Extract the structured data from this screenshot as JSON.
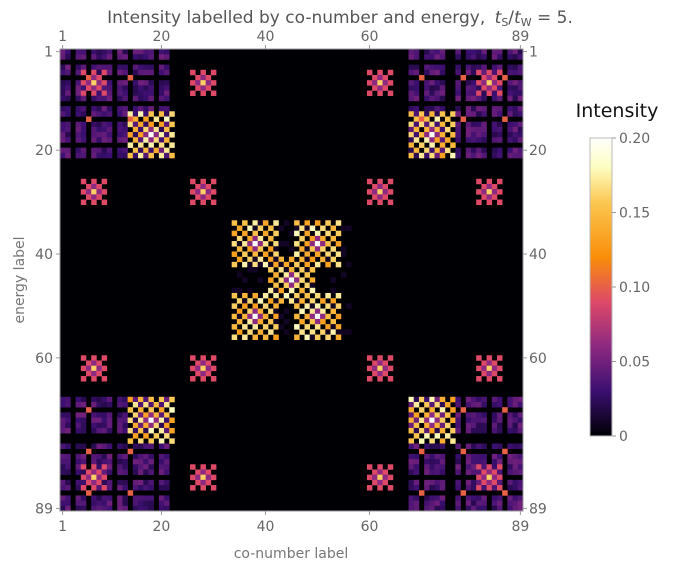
{
  "chart_data": {
    "type": "heatmap",
    "title_main": "Intensity labelled by co-number and energy,",
    "title_ratio": "t",
    "title_sub_s": "S",
    "title_slash": "/",
    "title_sub_w": "W",
    "title_tail": " = 5.",
    "xlabel": "co-number label",
    "ylabel": "energy label",
    "x_range": [
      1,
      89
    ],
    "y_range": [
      1,
      89
    ],
    "x_ticks": [
      "1",
      "20",
      "40",
      "60",
      "89"
    ],
    "x_tick_values": [
      1,
      20,
      40,
      60,
      89
    ],
    "y_ticks": [
      "1",
      "20",
      "40",
      "60",
      "89"
    ],
    "y_tick_values": [
      1,
      20,
      40,
      60,
      89
    ],
    "colorbar": {
      "title": "Intensity",
      "min": 0,
      "max": 0.2,
      "ticks": [
        "0",
        "0.05",
        "0.10",
        "0.15",
        "0.20"
      ],
      "tick_values": [
        0,
        0.05,
        0.1,
        0.15,
        0.2
      ],
      "colormap": [
        "#000004",
        "#3b0f70",
        "#8c2981",
        "#de4968",
        "#fe9f6d",
        "#fcfdbf",
        "#ffffff"
      ]
    },
    "pattern": "self-similar block structure; brightest blocks near (18,17),(72,17),(38,38),(50,38),(45,45),(38,52),(50,52),(18,72),(72,72)"
  }
}
